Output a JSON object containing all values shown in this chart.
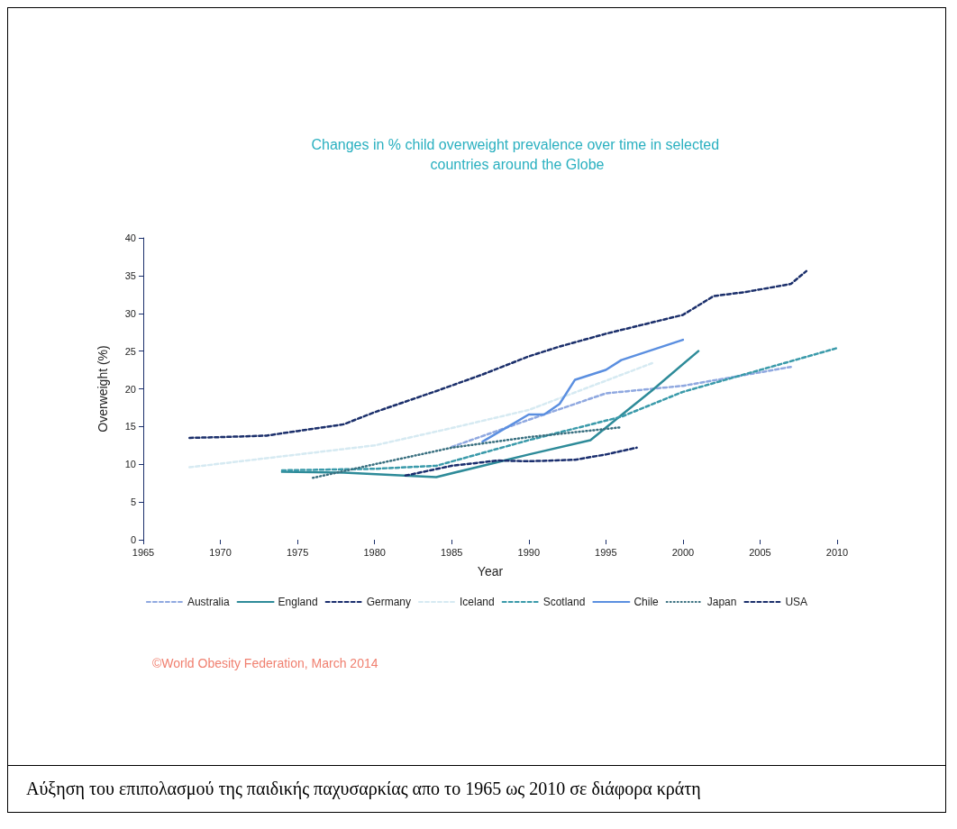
{
  "chart_data": {
    "type": "line",
    "title": "Changes in % child overweight prevalence over time in selected countries around the Globe",
    "xlabel": "Year",
    "ylabel": "Overweight (%)",
    "xlim": [
      1965,
      2010
    ],
    "xticks": [
      1965,
      1970,
      1975,
      1980,
      1985,
      1990,
      1995,
      2000,
      2005,
      2010
    ],
    "ylim": [
      0,
      40
    ],
    "yticks": [
      0,
      5,
      10,
      15,
      20,
      25,
      30,
      35,
      40
    ],
    "grid": false,
    "legend": "bottom",
    "marker": "none",
    "annotations": [
      "©World Obesity Federation, March 2014",
      "Αύξηση του επιπολασμού της παιδικής παχυσαρκίας απο το 1965 ως 2010 σε διάφορα κράτη"
    ],
    "series": [
      {
        "name": "Australia",
        "color": "#8fa8e0",
        "line_style": "dashed",
        "x": [
          1985,
          1990,
          1995,
          2000,
          2007
        ],
        "values": [
          12.3,
          15.9,
          19.4,
          20.4,
          22.9
        ]
      },
      {
        "name": "England",
        "color": "#2e8b99",
        "line_style": "solid",
        "x": [
          1974,
          1978,
          1984,
          1987,
          1990,
          1994,
          1996,
          1998,
          2001
        ],
        "values": [
          9.0,
          8.9,
          8.3,
          9.8,
          11.3,
          13.2,
          16.5,
          19.8,
          25.0
        ]
      },
      {
        "name": "Germany",
        "color": "#1a2e6e",
        "line_style": "dashed",
        "x": [
          1982,
          1985,
          1988,
          1990,
          1993,
          1995,
          1997
        ],
        "values": [
          8.5,
          9.8,
          10.5,
          10.4,
          10.6,
          11.3,
          12.2
        ]
      },
      {
        "name": "Iceland",
        "color": "#d6eaf2",
        "line_style": "dashed",
        "x": [
          1968,
          1980,
          1985,
          1990,
          1998
        ],
        "values": [
          9.6,
          12.5,
          14.8,
          17.2,
          23.4
        ]
      },
      {
        "name": "Scotland",
        "color": "#3a9aaa",
        "line_style": "dashed",
        "x": [
          1974,
          1980,
          1984,
          1990,
          1996,
          2000,
          2005,
          2010
        ],
        "values": [
          9.2,
          9.4,
          9.8,
          13.2,
          16.3,
          19.6,
          22.5,
          25.4
        ]
      },
      {
        "name": "Chile",
        "color": "#5b8fe0",
        "line_style": "solid",
        "x": [
          1987,
          1990,
          1991,
          1992,
          1993,
          1995,
          1996,
          2000
        ],
        "values": [
          13.0,
          16.6,
          16.6,
          18.0,
          21.2,
          22.5,
          23.8,
          26.5
        ]
      },
      {
        "name": "Japan",
        "color": "#3a7080",
        "line_style": "dotted",
        "x": [
          1976,
          1980,
          1985,
          1990,
          1996
        ],
        "values": [
          8.2,
          10.0,
          12.2,
          13.6,
          14.9
        ]
      },
      {
        "name": "USA",
        "color": "#1b2f6b",
        "line_style": "dashed",
        "x": [
          1968,
          1970,
          1973,
          1975,
          1978,
          1980,
          1984,
          1987,
          1990,
          1992,
          1995,
          2000,
          2002,
          2004,
          2007,
          2008
        ],
        "values": [
          13.5,
          13.6,
          13.8,
          14.4,
          15.3,
          16.9,
          19.7,
          21.9,
          24.3,
          25.6,
          27.3,
          29.8,
          32.3,
          32.8,
          33.9,
          35.6
        ]
      }
    ]
  }
}
